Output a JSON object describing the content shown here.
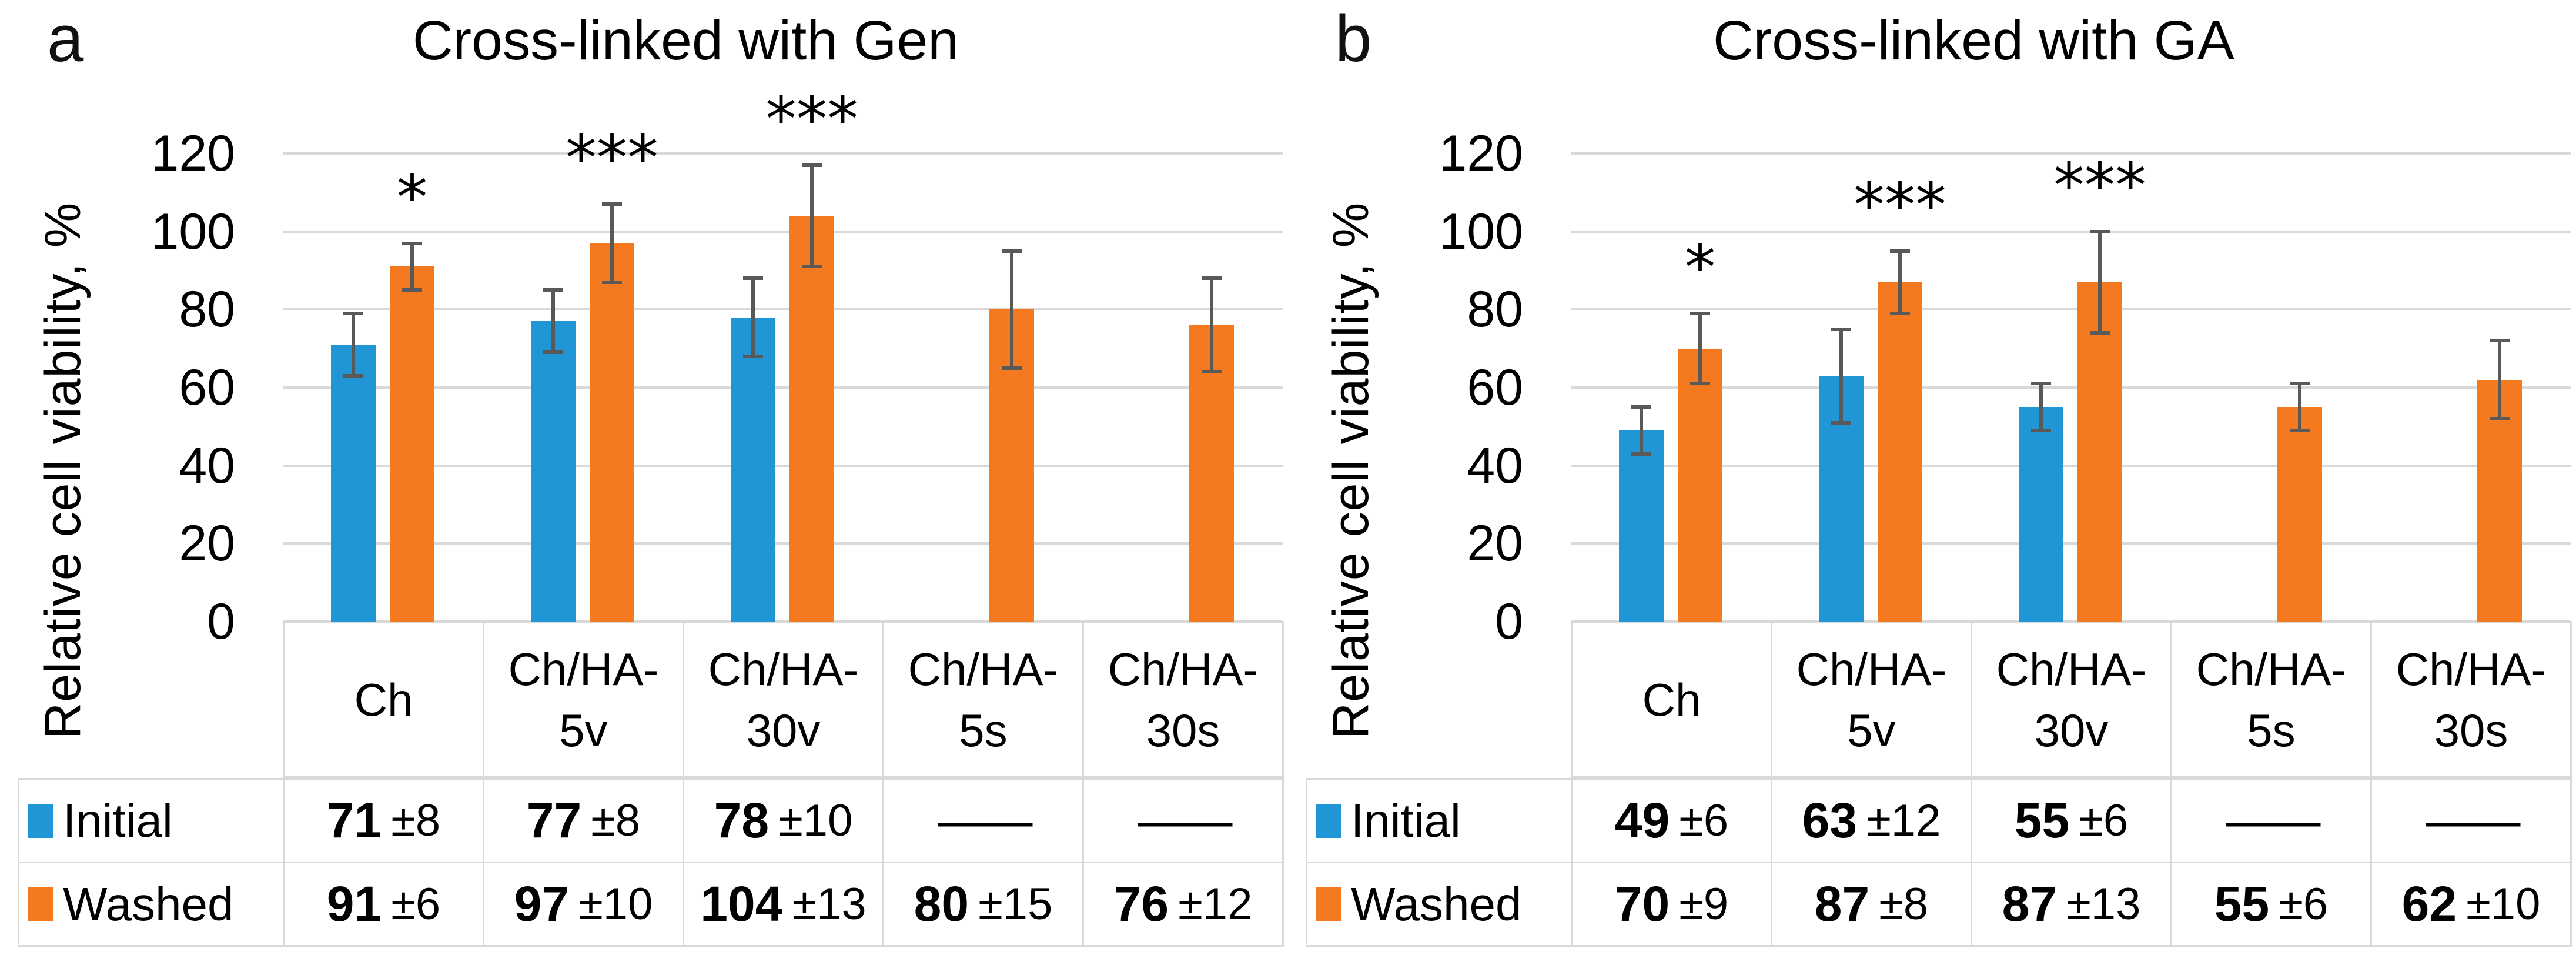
{
  "figure": {
    "background": "#ffffff",
    "text_color": "#000000",
    "grid_color": "#D9D9D9",
    "table_border_color": "#D9D9D9",
    "error_bar_color": "#595959"
  },
  "legend": {
    "initial_label": "Initial",
    "washed_label": "Washed",
    "initial_color": "#2196D6",
    "washed_color": "#F5791E"
  },
  "chart_data": [
    {
      "type": "bar",
      "panel_letter": "a",
      "title": "Cross-linked with Gen",
      "ylabel": "Relative cell viability, %",
      "ylim": [
        0,
        120
      ],
      "yticks": [
        0,
        20,
        40,
        60,
        80,
        100,
        120
      ],
      "grid": true,
      "legend_position": "table-left",
      "categories": [
        "Ch",
        "Ch/HA-5v",
        "Ch/HA-30v",
        "Ch/HA-5s",
        "Ch/HA-30s"
      ],
      "categories_display": [
        [
          "Ch"
        ],
        [
          "Ch/HA-",
          "5v"
        ],
        [
          "Ch/HA-",
          "30v"
        ],
        [
          "Ch/HA-",
          "5s"
        ],
        [
          "Ch/HA-",
          "30s"
        ]
      ],
      "series": [
        {
          "name": "Initial",
          "color": "#2196D6",
          "values": [
            71,
            77,
            78,
            null,
            null
          ],
          "errors": [
            8,
            8,
            10,
            null,
            null
          ],
          "values_display": [
            "71",
            "77",
            "78",
            "——",
            "——"
          ],
          "errors_display": [
            "±8",
            "±8",
            "±10",
            "",
            ""
          ]
        },
        {
          "name": "Washed",
          "color": "#F5791E",
          "values": [
            91,
            97,
            104,
            80,
            76
          ],
          "errors": [
            6,
            10,
            13,
            15,
            12
          ],
          "values_display": [
            "91",
            "97",
            "104",
            "80",
            "76"
          ],
          "errors_display": [
            "±6",
            "±10",
            "±13",
            "±15",
            "±12"
          ]
        }
      ],
      "significance": [
        {
          "category_index": 0,
          "series": "Washed",
          "label": "*"
        },
        {
          "category_index": 1,
          "series": "Washed",
          "label": "***"
        },
        {
          "category_index": 2,
          "series": "Washed",
          "label": "***"
        }
      ]
    },
    {
      "type": "bar",
      "panel_letter": "b",
      "title": "Cross-linked with GA",
      "ylabel": "Relative cell viability, %",
      "ylim": [
        0,
        120
      ],
      "yticks": [
        0,
        20,
        40,
        60,
        80,
        100,
        120
      ],
      "grid": true,
      "legend_position": "table-left",
      "categories": [
        "Ch",
        "Ch/HA-5v",
        "Ch/HA-30v",
        "Ch/HA-5s",
        "Ch/HA-30s"
      ],
      "categories_display": [
        [
          "Ch"
        ],
        [
          "Ch/HA-",
          "5v"
        ],
        [
          "Ch/HA-",
          "30v"
        ],
        [
          "Ch/HA-",
          "5s"
        ],
        [
          "Ch/HA-",
          "30s"
        ]
      ],
      "series": [
        {
          "name": "Initial",
          "color": "#2196D6",
          "values": [
            49,
            63,
            55,
            null,
            null
          ],
          "errors": [
            6,
            12,
            6,
            null,
            null
          ],
          "values_display": [
            "49",
            "63",
            "55",
            "——",
            "——"
          ],
          "errors_display": [
            "±6",
            "±12",
            "±6",
            "",
            ""
          ]
        },
        {
          "name": "Washed",
          "color": "#F5791E",
          "values": [
            70,
            87,
            87,
            55,
            62
          ],
          "errors": [
            9,
            8,
            13,
            6,
            10
          ],
          "values_display": [
            "70",
            "87",
            "87",
            "55",
            "62"
          ],
          "errors_display": [
            "±9",
            "±8",
            "±13",
            "±6",
            "±10"
          ]
        }
      ],
      "significance": [
        {
          "category_index": 0,
          "series": "Washed",
          "label": "*"
        },
        {
          "category_index": 1,
          "series": "Washed",
          "label": "***"
        },
        {
          "category_index": 2,
          "series": "Washed",
          "label": "***"
        }
      ]
    }
  ]
}
